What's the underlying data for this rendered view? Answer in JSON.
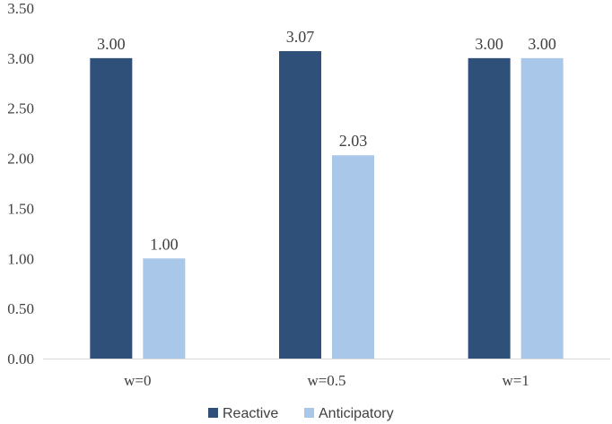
{
  "chart_data": {
    "type": "bar",
    "title": "",
    "xlabel": "",
    "ylabel": "",
    "categories": [
      "w=0",
      "w=0.5",
      "w=1"
    ],
    "series": [
      {
        "name": "Reactive",
        "values": [
          3.0,
          3.07,
          3.0
        ],
        "labels": [
          "3.00",
          "3.07",
          "3.00"
        ],
        "color": "#2e5079"
      },
      {
        "name": "Anticipatory",
        "values": [
          1.0,
          2.03,
          3.0
        ],
        "labels": [
          "1.00",
          "2.03",
          "3.00"
        ],
        "color": "#a9c7e8"
      }
    ],
    "ylim": [
      0,
      3.5
    ],
    "yticks": [
      "0.00",
      "0.50",
      "1.00",
      "1.50",
      "2.00",
      "2.50",
      "3.00",
      "3.50"
    ],
    "ytick_values": [
      0,
      0.5,
      1.0,
      1.5,
      2.0,
      2.5,
      3.0,
      3.5
    ],
    "grid": false,
    "legend_position": "bottom-center"
  }
}
